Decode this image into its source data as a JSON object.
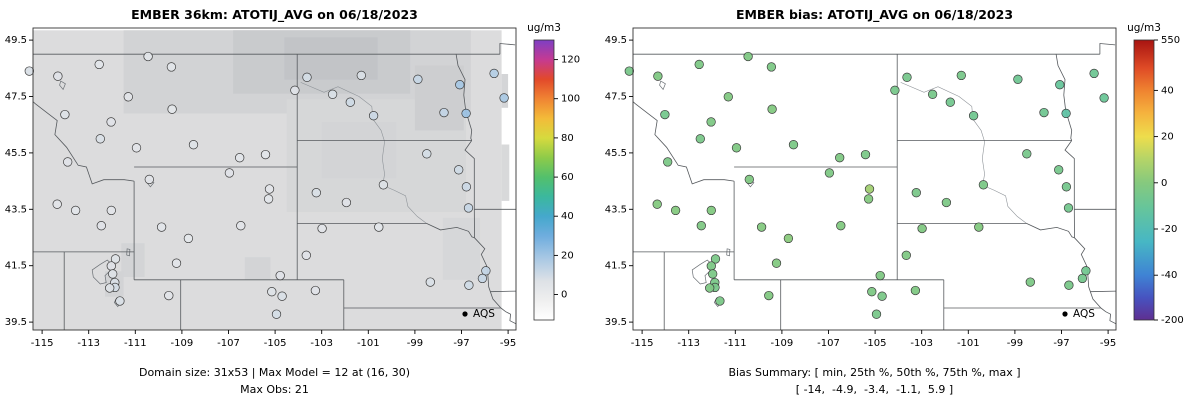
{
  "panels": [
    {
      "id": "model",
      "title": "EMBER 36km: ATOTIJ_AVG on 06/18/2023",
      "captions": [
        "Domain size: 31x53 | Max Model = 12 at (16, 30)",
        "Max Obs: 21"
      ],
      "legend": {
        "label": "AQS"
      },
      "value_field": "obs",
      "show_field": true,
      "colorbar": {
        "label": "ug/m3",
        "ticks": [
          0,
          20,
          40,
          60,
          80,
          100,
          120
        ],
        "value_map": {
          "points": [
            [
              -13,
              0
            ],
            [
              130,
              1
            ]
          ]
        },
        "stops": [
          {
            "f": 0.0,
            "c": "#ffffff"
          },
          {
            "f": 0.07,
            "c": "#efefef"
          },
          {
            "f": 0.14,
            "c": "#dde1e6"
          },
          {
            "f": 0.22,
            "c": "#a9c8e4"
          },
          {
            "f": 0.3,
            "c": "#6fadde"
          },
          {
            "f": 0.37,
            "c": "#45a8cc"
          },
          {
            "f": 0.44,
            "c": "#3bb89e"
          },
          {
            "f": 0.51,
            "c": "#53c06c"
          },
          {
            "f": 0.58,
            "c": "#8ecb49"
          },
          {
            "f": 0.65,
            "c": "#d6da3e"
          },
          {
            "f": 0.72,
            "c": "#f3bb39"
          },
          {
            "f": 0.79,
            "c": "#f08433"
          },
          {
            "f": 0.86,
            "c": "#e2492a"
          },
          {
            "f": 0.93,
            "c": "#c53a92"
          },
          {
            "f": 1.0,
            "c": "#7e3fc4"
          }
        ]
      }
    },
    {
      "id": "bias",
      "title": "EMBER bias: ATOTIJ_AVG on 06/18/2023",
      "captions": [
        "Bias Summary: [ min, 25th %, 50th %, 75th %, max ]",
        "[ -14,  -4.9,  -3.4,  -1.1,  5.9 ]"
      ],
      "legend": {
        "label": "AQS"
      },
      "value_field": "bias",
      "show_field": false,
      "colorbar": {
        "label": "ug/m3",
        "ticks": [
          550,
          40,
          20,
          0,
          -20,
          -40,
          -200
        ],
        "value_map": {
          "points": [
            [
              -200,
              0
            ],
            [
              -40,
              0.16
            ],
            [
              40,
              0.82
            ],
            [
              550,
              1.0
            ]
          ]
        },
        "stops": [
          {
            "f": 0.0,
            "c": "#5f2f91"
          },
          {
            "f": 0.08,
            "c": "#4753c0"
          },
          {
            "f": 0.16,
            "c": "#3f83d4"
          },
          {
            "f": 0.28,
            "c": "#47b7c4"
          },
          {
            "f": 0.4,
            "c": "#66c59b"
          },
          {
            "f": 0.49,
            "c": "#86c97e"
          },
          {
            "f": 0.58,
            "c": "#b8d566"
          },
          {
            "f": 0.655,
            "c": "#eedd4c"
          },
          {
            "f": 0.74,
            "c": "#f5b23e"
          },
          {
            "f": 0.82,
            "c": "#ef8330"
          },
          {
            "f": 0.9,
            "c": "#df4b26"
          },
          {
            "f": 1.0,
            "c": "#a81411"
          }
        ]
      }
    }
  ],
  "chart_data": {
    "type": "scatter",
    "subtype": "geo-scatter-map-pair",
    "date": "06/18/2023",
    "variable": "ATOTIJ_AVG",
    "units": "ug/m3",
    "network": "AQS",
    "model_summary": {
      "domain_size": "31x53",
      "max_model": 12,
      "max_model_cell": "(16, 30)",
      "max_obs": 21
    },
    "bias_summary": {
      "min": -14,
      "p25": -4.9,
      "p50": -3.4,
      "p75": -1.1,
      "max": 5.9
    },
    "axes": {
      "x_ticks": [
        -115,
        -113,
        -111,
        -109,
        -107,
        -105,
        -103,
        -101,
        -99,
        -97,
        -95
      ],
      "y_ticks": [
        39.5,
        41.5,
        43.5,
        45.5,
        47.5,
        49.5
      ],
      "xlim": [
        -115.39,
        -94.66
      ],
      "ylim": [
        39.22,
        49.93
      ],
      "grid": false
    },
    "station_fields": [
      "lon",
      "lat",
      "obs",
      "bias"
    ],
    "stations": [
      [
        -115.55,
        48.4,
        8,
        -4.5
      ],
      [
        -114.32,
        48.22,
        6,
        -2.0
      ],
      [
        -114.02,
        46.86,
        7,
        -5.5
      ],
      [
        -112.55,
        48.64,
        4,
        -3.0
      ],
      [
        -110.45,
        48.92,
        4,
        -2.4
      ],
      [
        -109.45,
        48.55,
        4,
        -3.1
      ],
      [
        -111.3,
        47.49,
        5,
        -1.5
      ],
      [
        -109.42,
        47.05,
        3,
        -1.1
      ],
      [
        -112.04,
        46.6,
        6,
        -2.8
      ],
      [
        -112.5,
        46.0,
        8,
        -4.2
      ],
      [
        -110.95,
        45.68,
        5,
        -2.4
      ],
      [
        -108.5,
        45.79,
        7,
        -3.4
      ],
      [
        -106.52,
        45.33,
        4,
        -2.2
      ],
      [
        -105.41,
        45.44,
        4,
        -3.6
      ],
      [
        -104.15,
        47.72,
        6,
        -4.9
      ],
      [
        -113.9,
        45.18,
        6,
        -3.5
      ],
      [
        -114.35,
        43.68,
        5,
        -0.8
      ],
      [
        -113.56,
        43.46,
        4,
        -0.3
      ],
      [
        -112.46,
        42.92,
        6,
        -2.2
      ],
      [
        -112.03,
        43.46,
        5,
        -1.2
      ],
      [
        -103.63,
        48.18,
        9,
        -5.2
      ],
      [
        -102.53,
        47.58,
        8,
        -4.7
      ],
      [
        -101.3,
        48.25,
        8,
        -4.4
      ],
      [
        -101.77,
        47.3,
        10,
        -6.3
      ],
      [
        -100.77,
        46.82,
        11,
        -6.8
      ],
      [
        -98.87,
        48.11,
        12,
        -7.5
      ],
      [
        -97.07,
        47.92,
        19,
        -11.0
      ],
      [
        -96.8,
        46.9,
        21,
        -14.0
      ],
      [
        -97.75,
        46.93,
        13,
        -7.0
      ],
      [
        -95.17,
        47.45,
        18,
        -9.5
      ],
      [
        -95.6,
        48.32,
        16,
        -8.0
      ],
      [
        -103.23,
        44.09,
        8,
        -4.1
      ],
      [
        -101.94,
        43.74,
        6,
        -2.9
      ],
      [
        -100.35,
        44.37,
        7,
        -3.3
      ],
      [
        -98.49,
        45.47,
        9,
        -4.8
      ],
      [
        -97.12,
        44.9,
        10,
        -5.1
      ],
      [
        -96.79,
        44.3,
        11,
        -5.6
      ],
      [
        -96.7,
        43.55,
        12,
        -6.1
      ],
      [
        -103.66,
        41.87,
        6,
        -2.3
      ],
      [
        -102.98,
        42.82,
        5,
        -1.6
      ],
      [
        -100.55,
        42.87,
        4,
        -0.9
      ],
      [
        -98.34,
        40.92,
        8,
        -3.0
      ],
      [
        -95.95,
        41.32,
        13,
        -6.6
      ],
      [
        -96.1,
        41.05,
        12,
        -5.8
      ],
      [
        -96.68,
        40.81,
        10,
        -4.3
      ],
      [
        -106.96,
        44.79,
        6,
        -2.7
      ],
      [
        -105.24,
        44.22,
        5,
        5.9
      ],
      [
        -105.28,
        43.87,
        4,
        -0.5
      ],
      [
        -106.47,
        42.92,
        5,
        -1.3
      ],
      [
        -108.72,
        42.47,
        3,
        0.8
      ],
      [
        -109.87,
        42.87,
        4,
        -0.6
      ],
      [
        -110.4,
        44.56,
        5,
        -1.7
      ],
      [
        -104.78,
        41.15,
        6,
        -2.1
      ],
      [
        -109.23,
        41.59,
        5,
        -1.0
      ],
      [
        -111.85,
        41.74,
        7,
        -3.9
      ],
      [
        -112.03,
        41.49,
        6,
        -3.1
      ],
      [
        -111.97,
        41.21,
        7,
        -3.5
      ],
      [
        -111.88,
        40.9,
        8,
        -4.0
      ],
      [
        -111.87,
        40.73,
        9,
        -4.6
      ],
      [
        -112.1,
        40.71,
        7,
        -2.5
      ],
      [
        -111.66,
        40.25,
        8,
        -3.7
      ],
      [
        -109.56,
        40.44,
        5,
        -1.4
      ],
      [
        -105.14,
        40.58,
        7,
        -2.7
      ],
      [
        -104.7,
        40.42,
        8,
        -3.8
      ],
      [
        -104.94,
        39.78,
        9,
        -4.4
      ],
      [
        -103.27,
        40.62,
        6,
        -2.0
      ]
    ],
    "basemap": {
      "borders": [
        [
          [
            -115.6,
            49.0
          ],
          [
            -95.35,
            49.0
          ]
        ],
        [
          [
            -95.35,
            49.0
          ],
          [
            -95.35,
            49.38
          ],
          [
            -95.05,
            49.36
          ],
          [
            -94.7,
            49.33
          ]
        ],
        [
          [
            -116.05,
            49.0
          ],
          [
            -116.05,
            47.95
          ],
          [
            -115.75,
            47.6
          ],
          [
            -115.3,
            47.25
          ],
          [
            -114.75,
            46.9
          ],
          [
            -114.35,
            46.65
          ],
          [
            -114.45,
            46.15
          ],
          [
            -113.95,
            45.7
          ],
          [
            -113.45,
            45.06
          ],
          [
            -113.1,
            45.0
          ],
          [
            -112.85,
            44.4
          ],
          [
            -112.35,
            44.55
          ],
          [
            -111.47,
            44.55
          ],
          [
            -111.05,
            44.5
          ]
        ],
        [
          [
            -111.05,
            45.0
          ],
          [
            -104.05,
            45.0
          ]
        ],
        [
          [
            -111.05,
            44.5
          ],
          [
            -111.05,
            41.0
          ]
        ],
        [
          [
            -115.6,
            41.99
          ],
          [
            -111.05,
            41.99
          ]
        ],
        [
          [
            -114.05,
            41.99
          ],
          [
            -114.05,
            39.22
          ]
        ],
        [
          [
            -111.05,
            41.0
          ],
          [
            -102.05,
            41.0
          ]
        ],
        [
          [
            -109.05,
            41.0
          ],
          [
            -109.05,
            39.22
          ]
        ],
        [
          [
            -104.05,
            49.0
          ],
          [
            -104.05,
            41.0
          ]
        ],
        [
          [
            -102.05,
            41.0
          ],
          [
            -102.05,
            39.22
          ]
        ],
        [
          [
            -102.05,
            40.0
          ],
          [
            -95.31,
            40.0
          ]
        ],
        [
          [
            -104.05,
            45.94
          ],
          [
            -96.56,
            45.94
          ]
        ],
        [
          [
            -104.05,
            43.0
          ],
          [
            -98.5,
            43.0
          ]
        ],
        [
          [
            -98.5,
            43.0
          ],
          [
            -97.9,
            42.77
          ],
          [
            -97.2,
            42.86
          ],
          [
            -96.7,
            42.72
          ],
          [
            -96.55,
            42.52
          ],
          [
            -96.44,
            42.49
          ]
        ],
        [
          [
            -96.44,
            42.49
          ],
          [
            -96.0,
            42.1
          ],
          [
            -96.15,
            41.9
          ],
          [
            -95.92,
            41.5
          ],
          [
            -95.87,
            41.2
          ],
          [
            -95.83,
            40.75
          ],
          [
            -95.65,
            40.32
          ],
          [
            -95.31,
            40.0
          ]
        ],
        [
          [
            -96.56,
            45.94
          ],
          [
            -96.85,
            45.6
          ],
          [
            -96.45,
            45.3
          ],
          [
            -96.45,
            43.5
          ],
          [
            -96.44,
            42.49
          ]
        ],
        [
          [
            -97.23,
            49.0
          ],
          [
            -97.15,
            48.6
          ],
          [
            -96.85,
            48.1
          ],
          [
            -96.9,
            47.55
          ],
          [
            -96.82,
            47.0
          ],
          [
            -96.56,
            46.3
          ],
          [
            -96.6,
            46.02
          ],
          [
            -96.56,
            45.94
          ]
        ],
        [
          [
            -96.45,
            43.5
          ],
          [
            -94.66,
            43.5
          ]
        ],
        [
          [
            -95.77,
            40.58
          ],
          [
            -94.66,
            40.6
          ]
        ],
        [
          [
            -95.31,
            40.0
          ],
          [
            -95.1,
            39.87
          ],
          [
            -94.89,
            39.78
          ],
          [
            -94.92,
            39.55
          ],
          [
            -94.66,
            39.44
          ]
        ]
      ],
      "lakes": [
        [
          [
            -112.2,
            41.7
          ],
          [
            -112.5,
            41.55
          ],
          [
            -112.85,
            41.35
          ],
          [
            -112.8,
            41.1
          ],
          [
            -112.5,
            40.85
          ],
          [
            -112.25,
            40.9
          ],
          [
            -112.3,
            41.15
          ],
          [
            -112.1,
            41.3
          ],
          [
            -112.0,
            41.55
          ]
        ],
        [
          [
            -111.8,
            40.35
          ],
          [
            -111.9,
            40.2
          ],
          [
            -111.75,
            40.05
          ],
          [
            -111.65,
            40.2
          ]
        ],
        [
          [
            -110.35,
            44.55
          ],
          [
            -110.2,
            44.45
          ],
          [
            -110.35,
            44.3
          ],
          [
            -110.5,
            44.45
          ]
        ],
        [
          [
            -114.2,
            48.05
          ],
          [
            -114.0,
            47.95
          ],
          [
            -114.1,
            47.75
          ],
          [
            -114.25,
            47.9
          ]
        ],
        [
          [
            -111.35,
            42.1
          ],
          [
            -111.23,
            42.08
          ],
          [
            -111.25,
            41.85
          ],
          [
            -111.37,
            41.88
          ]
        ]
      ],
      "rivers": [
        [
          [
            -103.9,
            48.0
          ],
          [
            -102.9,
            47.65
          ],
          [
            -102.3,
            47.85
          ],
          [
            -101.4,
            47.5
          ],
          [
            -100.85,
            47.15
          ],
          [
            -100.8,
            46.7
          ],
          [
            -100.45,
            46.3
          ],
          [
            -100.3,
            45.9
          ],
          [
            -100.4,
            45.3
          ],
          [
            -100.3,
            44.75
          ],
          [
            -100.38,
            44.35
          ],
          [
            -99.9,
            44.18
          ],
          [
            -99.4,
            43.98
          ],
          [
            -99.3,
            43.6
          ],
          [
            -98.9,
            43.25
          ],
          [
            -98.5,
            43.0
          ]
        ]
      ]
    },
    "field_patches": [
      {
        "lon": [
          -115.39,
          -95.28
        ],
        "lat": [
          39.22,
          49.85
        ],
        "c": "#dcdcdd"
      },
      {
        "lon": [
          -111.5,
          -96.6
        ],
        "lat": [
          46.9,
          49.85
        ],
        "c": "#d2d3d5"
      },
      {
        "lon": [
          -106.8,
          -99.2
        ],
        "lat": [
          47.6,
          49.85
        ],
        "c": "#c9cbcd"
      },
      {
        "lon": [
          -104.6,
          -100.6
        ],
        "lat": [
          48.1,
          49.6
        ],
        "c": "#c2c4c7"
      },
      {
        "lon": [
          -104.5,
          -96.8
        ],
        "lat": [
          43.4,
          47.4
        ],
        "c": "#d6d7d8"
      },
      {
        "lon": [
          -99.0,
          -96.9
        ],
        "lat": [
          46.3,
          48.6
        ],
        "c": "#cdced0"
      },
      {
        "lon": [
          -103.0,
          -99.8
        ],
        "lat": [
          44.6,
          46.6
        ],
        "c": "#d3d4d6"
      },
      {
        "lon": [
          -97.8,
          -96.2
        ],
        "lat": [
          41.0,
          43.2
        ],
        "c": "#d6d7d9"
      },
      {
        "lon": [
          -111.6,
          -110.6
        ],
        "lat": [
          41.1,
          42.3
        ],
        "c": "#d3d4d6"
      },
      {
        "lon": [
          -112.3,
          -111.5
        ],
        "lat": [
          40.4,
          41.3
        ],
        "c": "#d2d3d5"
      },
      {
        "lon": [
          -106.3,
          -105.2
        ],
        "lat": [
          41.0,
          41.8
        ],
        "c": "#d3d4d6"
      },
      {
        "lon": [
          -95.28,
          -94.95
        ],
        "lat": [
          43.8,
          45.8
        ],
        "c": "#d8d9da"
      },
      {
        "lon": [
          -95.28,
          -95.0
        ],
        "lat": [
          47.1,
          48.3
        ],
        "c": "#d4d5d7"
      }
    ]
  }
}
